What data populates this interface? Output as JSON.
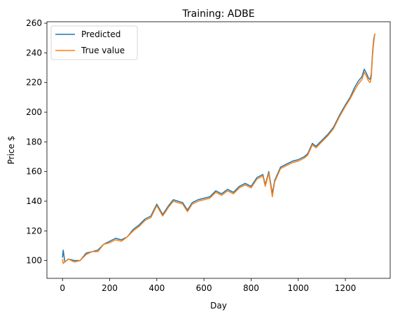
{
  "chart_data": {
    "type": "line",
    "title": "Training: ADBE",
    "xlabel": "Day",
    "ylabel": "Price $",
    "xlim": [
      -66,
      1390
    ],
    "ylim": [
      88,
      261
    ],
    "xticks": [
      0,
      200,
      400,
      600,
      800,
      1000,
      1200
    ],
    "yticks": [
      100,
      120,
      140,
      160,
      180,
      200,
      220,
      240,
      260
    ],
    "grid": false,
    "legend_position": "top-left",
    "colors": {
      "predicted": "#1f77b4",
      "true_value": "#ff7f0e"
    },
    "x": [
      0,
      3,
      10,
      25,
      50,
      75,
      100,
      125,
      150,
      175,
      200,
      225,
      250,
      275,
      300,
      325,
      350,
      375,
      400,
      425,
      450,
      470,
      490,
      510,
      530,
      550,
      575,
      600,
      625,
      650,
      675,
      700,
      725,
      750,
      775,
      800,
      825,
      850,
      860,
      875,
      890,
      900,
      925,
      950,
      975,
      1000,
      1025,
      1040,
      1060,
      1075,
      1100,
      1125,
      1150,
      1175,
      1200,
      1220,
      1240,
      1255,
      1270,
      1280,
      1290,
      1298,
      1305,
      1310,
      1315,
      1320,
      1325
    ],
    "series": [
      {
        "name": "Predicted",
        "values": [
          102,
          107,
          99,
          101,
          100,
          100,
          105,
          106,
          107,
          111,
          113,
          115,
          114,
          116,
          121,
          124,
          128,
          130,
          138,
          131,
          137,
          141,
          140,
          139,
          134,
          139,
          141,
          142,
          143,
          147,
          145,
          148,
          146,
          150,
          152,
          150,
          156,
          158,
          151,
          160,
          145,
          154,
          163,
          165,
          167,
          168,
          170,
          172,
          179,
          177,
          181,
          185,
          190,
          198,
          205,
          210,
          217,
          221,
          224,
          229,
          226,
          223,
          222,
          226,
          240,
          249,
          253
        ]
      },
      {
        "name": "True value",
        "values": [
          101,
          98,
          99,
          101,
          99,
          100,
          104,
          106,
          106,
          111,
          112,
          114,
          113,
          116,
          120,
          123,
          127,
          129,
          137,
          130,
          136,
          140,
          139,
          138,
          133,
          138,
          140,
          141,
          142,
          146,
          144,
          147,
          145,
          149,
          151,
          149,
          155,
          157,
          150,
          159,
          143,
          153,
          162,
          164,
          166,
          167,
          169,
          171,
          178,
          176,
          180,
          184,
          189,
          197,
          204,
          209,
          215,
          219,
          222,
          227,
          224,
          221,
          220,
          224,
          238,
          247,
          253
        ]
      }
    ]
  }
}
